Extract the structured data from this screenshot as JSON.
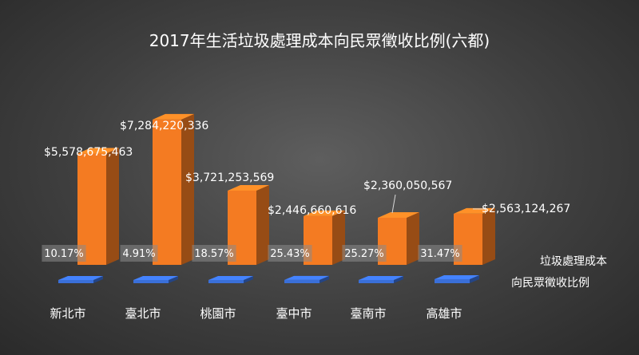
{
  "chart_data": {
    "type": "bar",
    "title": "2017年生活垃圾處理成本向民眾徵收比例(六都)",
    "categories": [
      "新北市",
      "臺北市",
      "桃園市",
      "臺中市",
      "臺南市",
      "高雄市"
    ],
    "series": [
      {
        "name": "垃圾處理成本",
        "values": [
          5578675463,
          7284220336,
          3721253569,
          2446660616,
          2360050567,
          2563124267
        ],
        "labels": [
          "$5,578,675,463",
          "$7,284,220,336",
          "$3,721,253,569",
          "$2,446,660,616",
          "$2,360,050,567",
          "$2,563,124,267"
        ],
        "color": "#f47b22"
      },
      {
        "name": "向民眾徵收比例",
        "values": [
          10.17,
          4.91,
          18.57,
          25.43,
          25.27,
          31.47
        ],
        "labels": [
          "10.17%",
          "4.91%",
          "18.57%",
          "25.43%",
          "25.27%",
          "31.47%"
        ],
        "color": "#3a6fd8"
      }
    ],
    "ylim": [
      0,
      8000000000
    ],
    "grid": false,
    "legend": "right"
  }
}
